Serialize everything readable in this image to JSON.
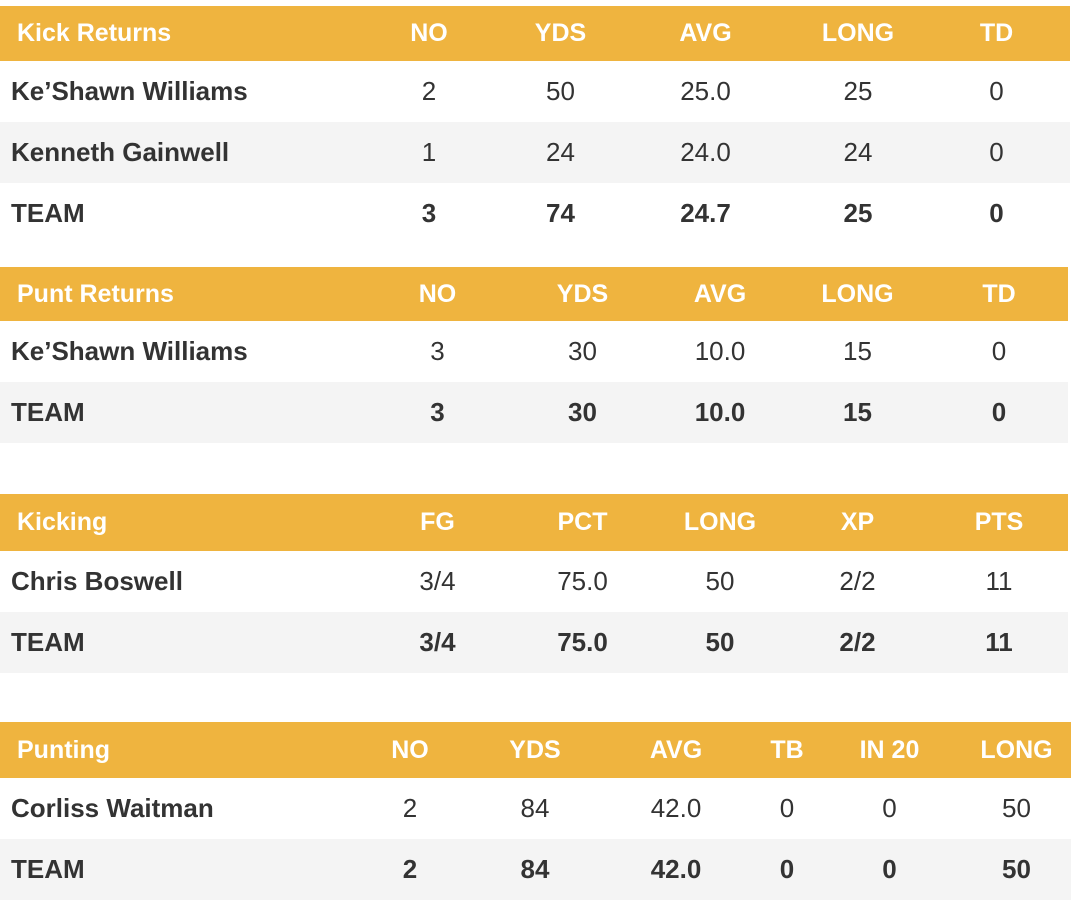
{
  "kick_returns": {
    "headers": [
      "Kick Returns",
      "NO",
      "YDS",
      "AVG",
      "LONG",
      "TD"
    ],
    "rows": [
      [
        "Ke’Shawn Williams",
        "2",
        "50",
        "25.0",
        "25",
        "0"
      ],
      [
        "Kenneth Gainwell",
        "1",
        "24",
        "24.0",
        "24",
        "0"
      ],
      [
        "TEAM",
        "3",
        "74",
        "24.7",
        "25",
        "0"
      ]
    ]
  },
  "punt_returns": {
    "headers": [
      "Punt Returns",
      "NO",
      "YDS",
      "AVG",
      "LONG",
      "TD"
    ],
    "rows": [
      [
        "Ke’Shawn Williams",
        "3",
        "30",
        "10.0",
        "15",
        "0"
      ],
      [
        "TEAM",
        "3",
        "30",
        "10.0",
        "15",
        "0"
      ]
    ]
  },
  "kicking": {
    "headers": [
      "Kicking",
      "FG",
      "PCT",
      "LONG",
      "XP",
      "PTS"
    ],
    "rows": [
      [
        "Chris Boswell",
        "3/4",
        "75.0",
        "50",
        "2/2",
        "11"
      ],
      [
        "TEAM",
        "3/4",
        "75.0",
        "50",
        "2/2",
        "11"
      ]
    ]
  },
  "punting": {
    "headers": [
      "Punting",
      "NO",
      "YDS",
      "AVG",
      "TB",
      "IN 20",
      "LONG"
    ],
    "rows": [
      [
        "Corliss Waitman",
        "2",
        "84",
        "42.0",
        "0",
        "0",
        "50"
      ],
      [
        "TEAM",
        "2",
        "84",
        "42.0",
        "0",
        "0",
        "50"
      ]
    ]
  }
}
